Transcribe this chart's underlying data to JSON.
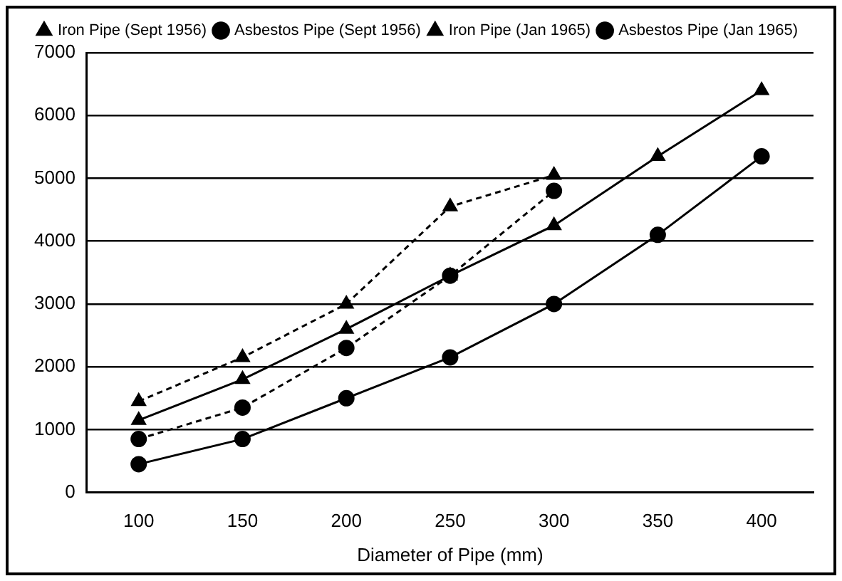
{
  "chart_data": {
    "type": "line",
    "xlabel": "Diameter of Pipe (mm)",
    "categories": [
      "100",
      "150",
      "200",
      "250",
      "300",
      "350",
      "400"
    ],
    "series": [
      {
        "name": "Iron Pipe (Sept 1956)",
        "color": "#000000",
        "marker": "triangle",
        "line_style": "dashed",
        "values": [
          1450,
          2150,
          3000,
          4550,
          5050,
          null,
          null
        ]
      },
      {
        "name": "Asbestos Pipe (Sept 1956)",
        "color": "#000000",
        "marker": "circle",
        "line_style": "dashed",
        "values": [
          850,
          1350,
          2300,
          3450,
          4800,
          null,
          null
        ]
      },
      {
        "name": "Iron Pipe (Jan 1965)",
        "color": "#000000",
        "marker": "triangle",
        "line_style": "solid",
        "values": [
          1150,
          1800,
          2600,
          3450,
          4250,
          5350,
          6400
        ]
      },
      {
        "name": "Asbestos Pipe (Jan 1965)",
        "color": "#000000",
        "marker": "circle",
        "line_style": "solid",
        "values": [
          450,
          850,
          1500,
          2150,
          3000,
          4100,
          5350
        ]
      }
    ],
    "ylim": [
      0,
      7000
    ],
    "yticks": [
      0,
      1000,
      2000,
      3000,
      4000,
      5000,
      6000,
      7000
    ],
    "grid": "y",
    "legend": "top"
  }
}
